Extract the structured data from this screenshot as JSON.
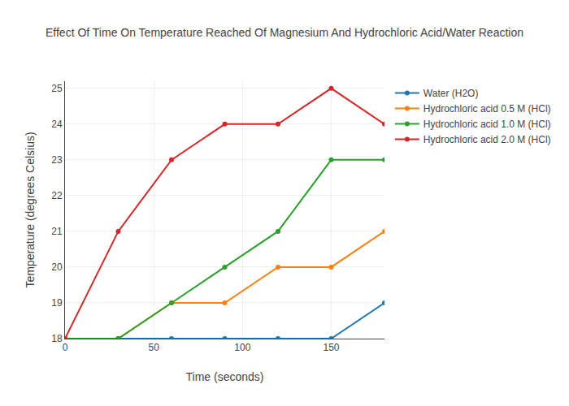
{
  "chart_data": {
    "type": "line",
    "title": "Effect Of Time On Temperature Reached Of Magnesium And Hydrochloric Acid/Water Reaction",
    "x_label": "Time (seconds)",
    "y_label": "Temperature (degrees Celsius)",
    "x": [
      0,
      30,
      60,
      90,
      120,
      150,
      180
    ],
    "series": [
      {
        "name": "Water (H2O)",
        "color": "#1f77b4",
        "values": [
          18,
          18,
          18,
          18,
          18,
          18,
          19
        ]
      },
      {
        "name": "Hydrochloric acid 0.5 M (HCl)",
        "color": "#ff7f0e",
        "values": [
          18,
          18,
          19,
          19,
          20,
          20,
          21
        ]
      },
      {
        "name": "Hydrochloric acid 1.0 M (HCl)",
        "color": "#2ca02c",
        "values": [
          18,
          18,
          19,
          20,
          21,
          23,
          23
        ]
      },
      {
        "name": "Hydrochloric acid 2.0 M (HCl)",
        "color": "#d62728",
        "values": [
          18,
          21,
          23,
          24,
          24,
          25,
          24
        ]
      }
    ],
    "xlim": [
      0,
      180
    ],
    "xticks": [
      0,
      50,
      100,
      150
    ],
    "ylim": [
      18,
      25.2
    ],
    "yticks": [
      18,
      19,
      20,
      21,
      22,
      23,
      24,
      25
    ],
    "grid": true,
    "legend": "right",
    "marker": "circle",
    "line_style": "solid"
  }
}
